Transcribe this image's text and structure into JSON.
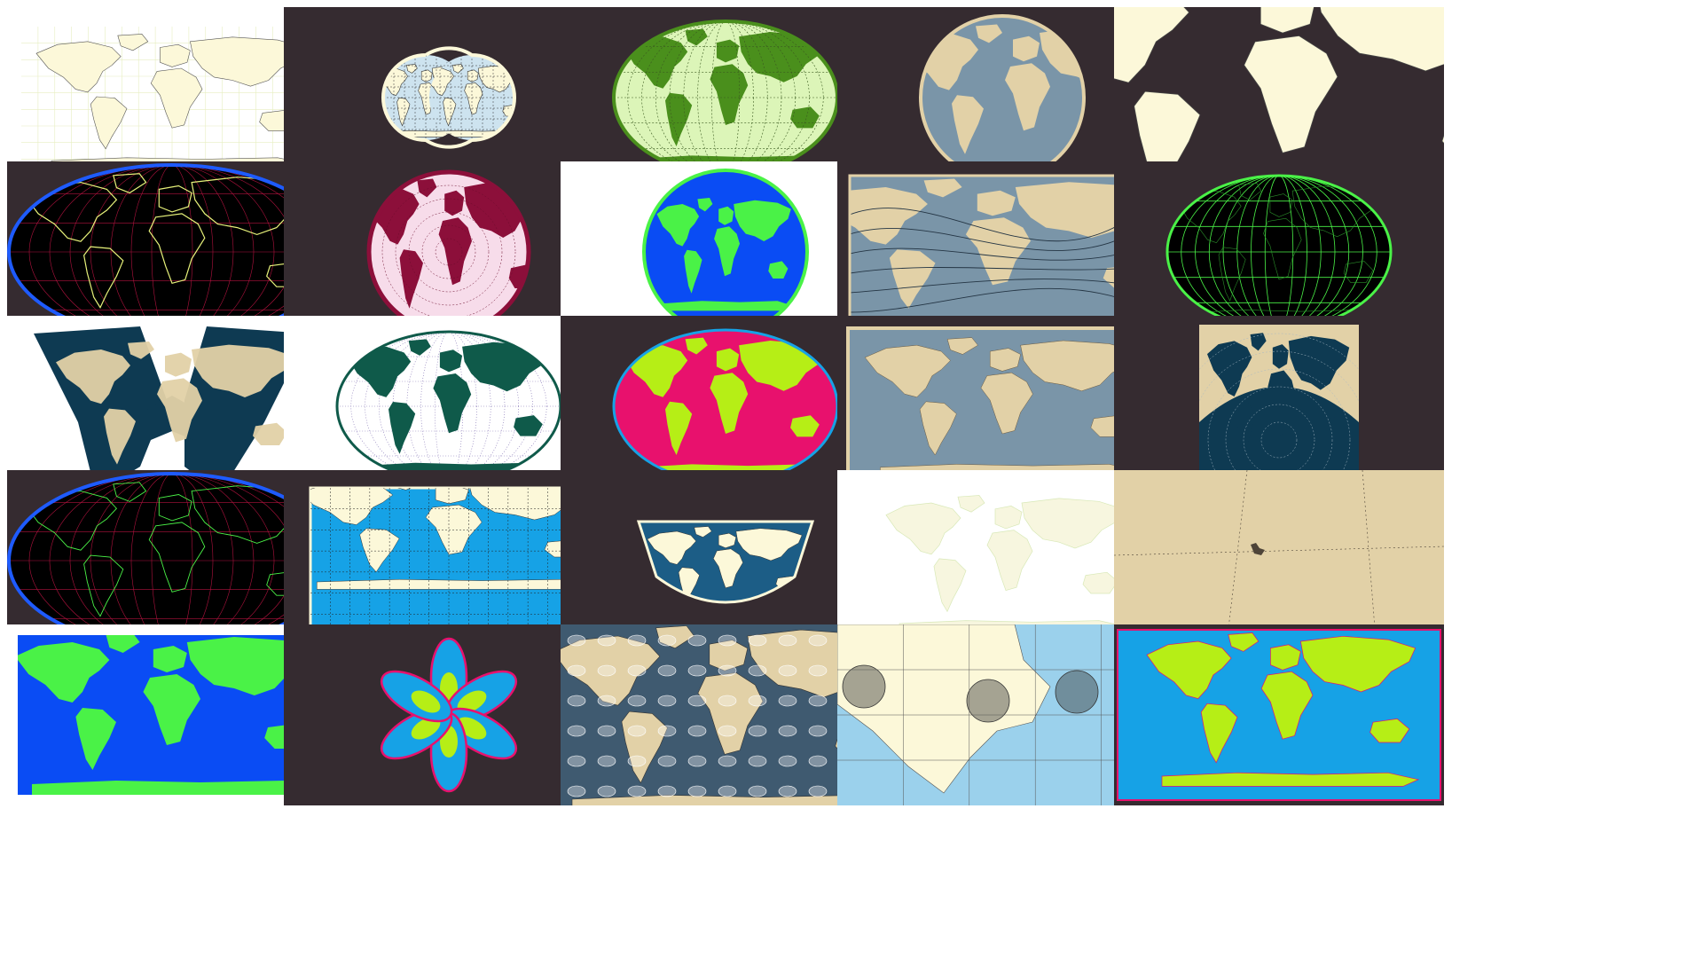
{
  "colors": {
    "page": "#ffffff",
    "dark": "#352b30",
    "sand": "#e2d1a7",
    "slate": "#7a95a8",
    "cream": "#fcf8d9",
    "navy": "#0e3a52",
    "neon_green": "#4af247",
    "royal_blue": "#0a4cf4",
    "magenta": "#e8116d",
    "lime": "#b6ee16",
    "sky": "#16a2e6",
    "forest": "#0f5a4a",
    "maroon": "#8c0f3a",
    "olive": "#4a8f1c"
  },
  "gallery": {
    "columns": 5,
    "rows": 5,
    "tiles": [
      {
        "style": "light-equirect-graticule",
        "icon": "world-map"
      },
      {
        "style": "dark-double-hemisphere",
        "icon": "world-map"
      },
      {
        "style": "dark-green-ellipse",
        "icon": "world-map"
      },
      {
        "style": "dark-orthographic-globe",
        "icon": "world-map"
      },
      {
        "style": "dark-cream-zoomed-inverted",
        "icon": "world-map"
      },
      {
        "style": "black-robinson-neon",
        "icon": "world-map"
      },
      {
        "style": "dark-maroon-azimuthal",
        "icon": "world-map"
      },
      {
        "style": "white-blue-green-globe",
        "icon": "world-map"
      },
      {
        "style": "dark-sand-rotated-rect",
        "icon": "world-map"
      },
      {
        "style": "dark-green-outline-ellipse",
        "icon": "world-map"
      },
      {
        "style": "white-butterfly-navy",
        "icon": "world-map"
      },
      {
        "style": "white-forest-ellipse",
        "icon": "world-map"
      },
      {
        "style": "dark-magenta-lime-ellipse",
        "icon": "world-map"
      },
      {
        "style": "dark-sand-slate-rect",
        "icon": "world-map"
      },
      {
        "style": "dark-navy-square",
        "icon": "world-map"
      },
      {
        "style": "black-mollweide-neon",
        "icon": "world-map"
      },
      {
        "style": "dark-sky-rotated-rect",
        "icon": "world-map"
      },
      {
        "style": "dark-bowl-projection",
        "icon": "world-map"
      },
      {
        "style": "white-faint-cream-map",
        "icon": "world-map"
      },
      {
        "style": "sand-zoomed-hawaii",
        "icon": "world-map"
      },
      {
        "style": "white-royal-blue-neon-green",
        "icon": "world-map"
      },
      {
        "style": "dark-six-petal-flower",
        "icon": "world-map"
      },
      {
        "style": "dark-tissot-indicatrix",
        "icon": "world-map"
      },
      {
        "style": "light-north-america-circles",
        "icon": "world-map"
      },
      {
        "style": "dark-sky-lime-rect",
        "icon": "world-map"
      }
    ]
  }
}
